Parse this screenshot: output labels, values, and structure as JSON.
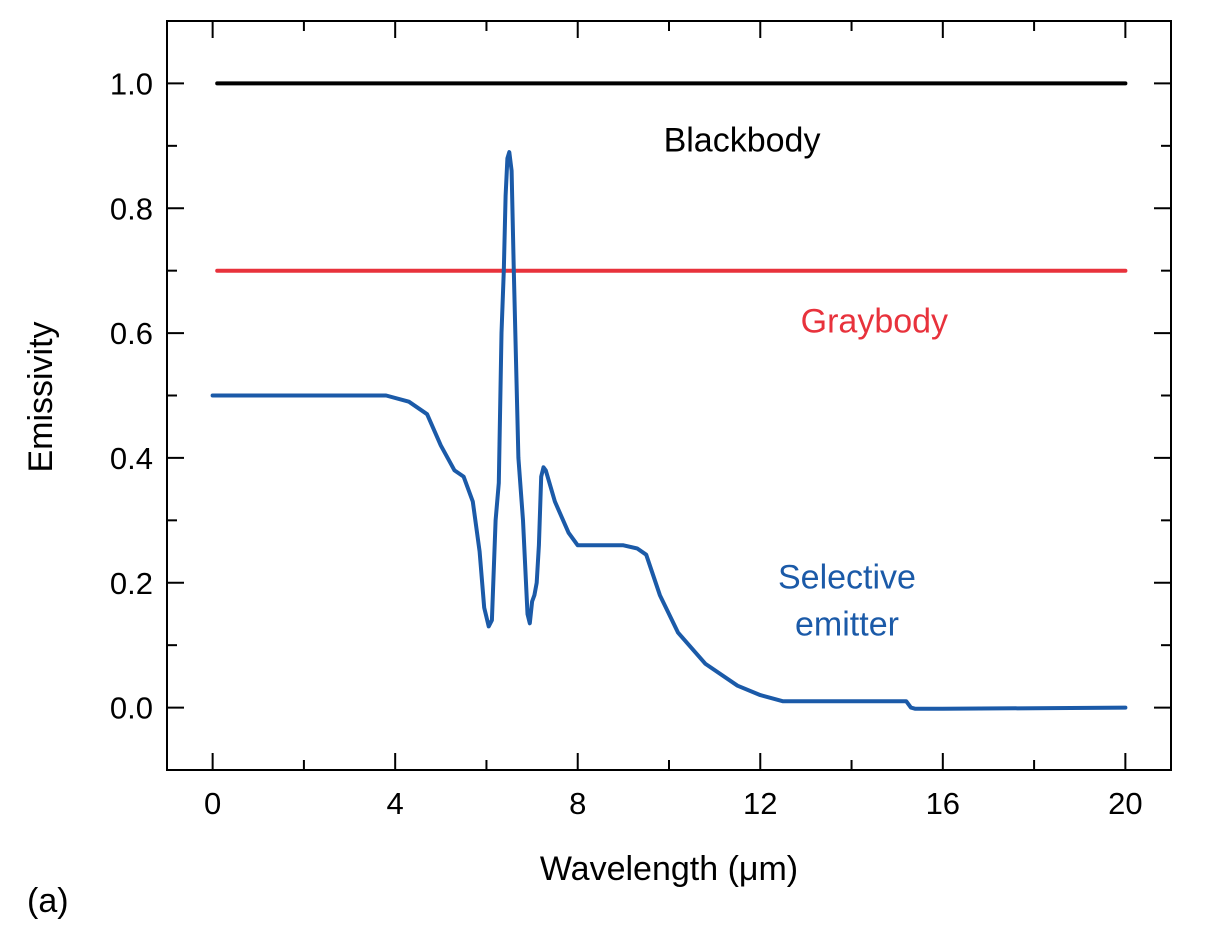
{
  "panel_label": "(a)",
  "chart_data": {
    "type": "line",
    "xlabel": "Wavelength (μm)",
    "ylabel": "Emissivity",
    "xlim": [
      -1,
      21
    ],
    "ylim": [
      -0.1,
      1.1
    ],
    "x_ticks": [
      0,
      4,
      8,
      12,
      16,
      20
    ],
    "x_tick_labels": [
      "0",
      "4",
      "8",
      "12",
      "16",
      "20"
    ],
    "x_minor_ticks": [
      2,
      6,
      10,
      14,
      18
    ],
    "y_ticks": [
      0.0,
      0.2,
      0.4,
      0.6,
      0.8,
      1.0
    ],
    "y_tick_labels": [
      "0.0",
      "0.2",
      "0.4",
      "0.6",
      "0.8",
      "1.0"
    ],
    "y_minor_ticks": [
      0.1,
      0.3,
      0.5,
      0.7,
      0.9
    ],
    "grid": false,
    "legend": "none",
    "series": [
      {
        "name": "Blackbody",
        "color": "#000000",
        "x": [
          0.1,
          20
        ],
        "y": [
          1.0,
          1.0
        ]
      },
      {
        "name": "Graybody",
        "color": "#e8323c",
        "x": [
          0.1,
          20
        ],
        "y": [
          0.7,
          0.7
        ]
      },
      {
        "name": "Selective emitter",
        "color": "#1b5aa8",
        "x": [
          0.0,
          1.0,
          2.0,
          3.0,
          3.8,
          4.3,
          4.7,
          5.0,
          5.3,
          5.5,
          5.7,
          5.85,
          5.95,
          6.05,
          6.12,
          6.2,
          6.27,
          6.33,
          6.38,
          6.42,
          6.46,
          6.5,
          6.55,
          6.6,
          6.65,
          6.7,
          6.8,
          6.9,
          6.95,
          7.0,
          7.05,
          7.1,
          7.15,
          7.2,
          7.25,
          7.3,
          7.5,
          7.8,
          8.0,
          8.5,
          9.0,
          9.3,
          9.5,
          9.8,
          10.2,
          10.8,
          11.5,
          12.0,
          12.5,
          13.0,
          14.0,
          15.0,
          15.2,
          15.3,
          15.4,
          16.0,
          18.0,
          20.0
        ],
        "y": [
          0.5,
          0.5,
          0.5,
          0.5,
          0.5,
          0.49,
          0.47,
          0.42,
          0.38,
          0.37,
          0.33,
          0.25,
          0.16,
          0.13,
          0.14,
          0.3,
          0.36,
          0.6,
          0.7,
          0.82,
          0.88,
          0.89,
          0.86,
          0.7,
          0.55,
          0.4,
          0.3,
          0.15,
          0.135,
          0.17,
          0.18,
          0.2,
          0.26,
          0.37,
          0.385,
          0.38,
          0.33,
          0.28,
          0.26,
          0.26,
          0.26,
          0.255,
          0.245,
          0.18,
          0.12,
          0.07,
          0.035,
          0.02,
          0.01,
          0.01,
          0.01,
          0.01,
          0.01,
          0.0,
          -0.002,
          -0.002,
          -0.001,
          0.0
        ]
      }
    ],
    "annotations": [
      {
        "text": "Blackbody",
        "color": "#000000",
        "x": 11.6,
        "y": 0.91
      },
      {
        "text": "Graybody",
        "color": "#e8323c",
        "x": 14.5,
        "y": 0.62
      },
      {
        "text": "Selective",
        "color": "#1b5aa8",
        "x": 13.9,
        "y": 0.21
      },
      {
        "text": "emitter",
        "color": "#1b5aa8",
        "x": 13.9,
        "y": 0.135
      }
    ]
  }
}
